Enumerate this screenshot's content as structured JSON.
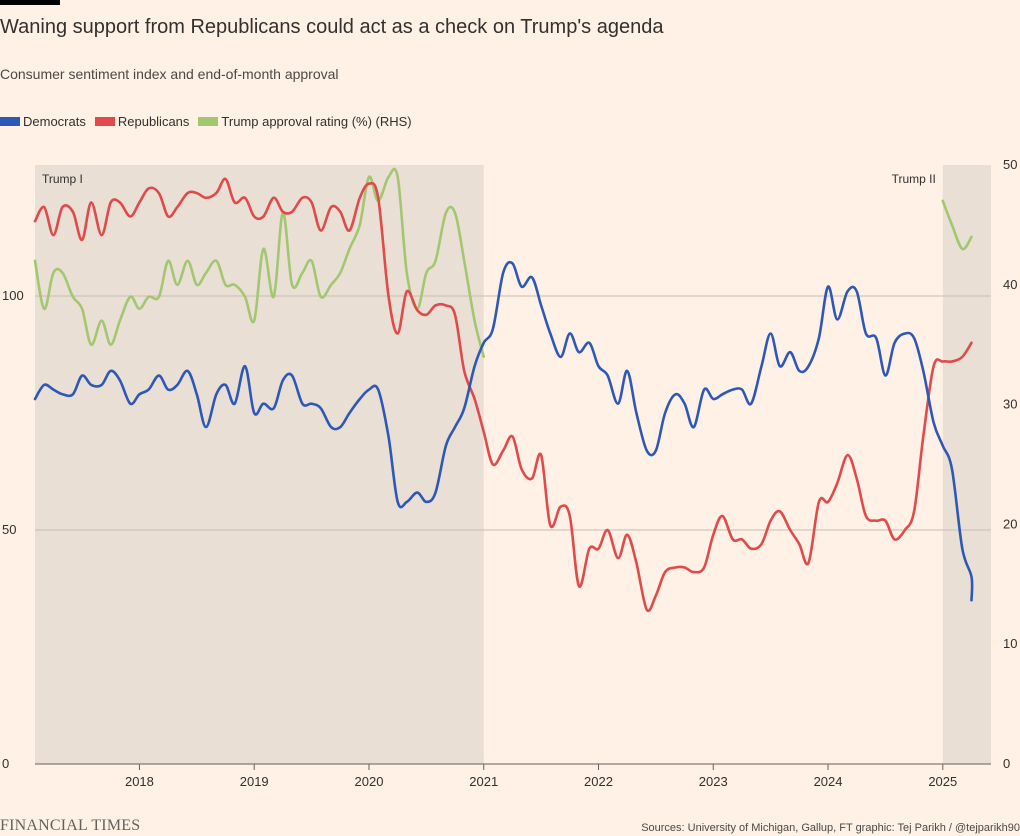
{
  "title": "Waning support from Republicans could act as a check on Trump's agenda",
  "subtitle": "Consumer sentiment index and end-of-month approval",
  "legend": [
    {
      "label": "Democrats",
      "color": "#2e58b8"
    },
    {
      "label": "Republicans",
      "color": "#e04a4a"
    },
    {
      "label": "Trump approval rating (%) (RHS)",
      "color": "#a3c770"
    }
  ],
  "footer": {
    "brand": "FINANCIAL TIMES",
    "source": "Sources: University of Michigan, Gallup, FT graphic: Tej Parikh / @tejparikh90"
  },
  "chart_data": {
    "type": "line",
    "xlabel": "",
    "ylabel": "",
    "x_ticks": [
      "2018",
      "2019",
      "2020",
      "2021",
      "2022",
      "2023",
      "2024",
      "2025"
    ],
    "x_range": [
      2017.09,
      2025.42
    ],
    "y_left": {
      "range": [
        0,
        128
      ],
      "ticks": [
        0,
        50,
        100
      ],
      "grid": true
    },
    "y_right": {
      "range": [
        0,
        50
      ],
      "ticks": [
        0,
        10,
        20,
        30,
        40,
        50
      ]
    },
    "shaded_periods": [
      {
        "label": "Trump I",
        "start": 2017.09,
        "end": 2021.0
      },
      {
        "label": "Trump II",
        "start": 2025.0,
        "end": 2025.42
      }
    ],
    "series": [
      {
        "name": "Democrats",
        "color": "#2e58b8",
        "axis": "left",
        "points": [
          [
            2017.09,
            78
          ],
          [
            2017.17,
            81
          ],
          [
            2017.25,
            80
          ],
          [
            2017.33,
            79
          ],
          [
            2017.42,
            79
          ],
          [
            2017.5,
            83
          ],
          [
            2017.58,
            81
          ],
          [
            2017.67,
            81
          ],
          [
            2017.75,
            84
          ],
          [
            2017.83,
            82
          ],
          [
            2017.92,
            77
          ],
          [
            2018.0,
            79
          ],
          [
            2018.08,
            80
          ],
          [
            2018.17,
            83
          ],
          [
            2018.25,
            80
          ],
          [
            2018.33,
            81
          ],
          [
            2018.42,
            84
          ],
          [
            2018.5,
            79
          ],
          [
            2018.58,
            72
          ],
          [
            2018.67,
            79
          ],
          [
            2018.75,
            81
          ],
          [
            2018.83,
            77
          ],
          [
            2018.92,
            85
          ],
          [
            2019.0,
            75
          ],
          [
            2019.08,
            77
          ],
          [
            2019.17,
            76
          ],
          [
            2019.25,
            82
          ],
          [
            2019.33,
            83
          ],
          [
            2019.42,
            77
          ],
          [
            2019.5,
            77
          ],
          [
            2019.58,
            76
          ],
          [
            2019.67,
            72
          ],
          [
            2019.75,
            72
          ],
          [
            2019.83,
            75
          ],
          [
            2019.92,
            78
          ],
          [
            2020.0,
            80
          ],
          [
            2020.08,
            80
          ],
          [
            2020.17,
            70
          ],
          [
            2020.25,
            56
          ],
          [
            2020.33,
            56
          ],
          [
            2020.42,
            58
          ],
          [
            2020.5,
            56
          ],
          [
            2020.58,
            58
          ],
          [
            2020.67,
            68
          ],
          [
            2020.75,
            72
          ],
          [
            2020.83,
            76
          ],
          [
            2020.92,
            85
          ],
          [
            2021.0,
            90
          ],
          [
            2021.08,
            93
          ],
          [
            2021.17,
            105
          ],
          [
            2021.25,
            107
          ],
          [
            2021.33,
            102
          ],
          [
            2021.42,
            104
          ],
          [
            2021.5,
            98
          ],
          [
            2021.58,
            92
          ],
          [
            2021.67,
            87
          ],
          [
            2021.75,
            92
          ],
          [
            2021.83,
            88
          ],
          [
            2021.92,
            90
          ],
          [
            2022.0,
            85
          ],
          [
            2022.08,
            83
          ],
          [
            2022.17,
            77
          ],
          [
            2022.25,
            84
          ],
          [
            2022.33,
            75
          ],
          [
            2022.42,
            67
          ],
          [
            2022.5,
            67
          ],
          [
            2022.58,
            75
          ],
          [
            2022.67,
            79
          ],
          [
            2022.75,
            77
          ],
          [
            2022.83,
            72
          ],
          [
            2022.92,
            80
          ],
          [
            2023.0,
            78
          ],
          [
            2023.08,
            79
          ],
          [
            2023.17,
            80
          ],
          [
            2023.25,
            80
          ],
          [
            2023.33,
            77
          ],
          [
            2023.42,
            85
          ],
          [
            2023.5,
            92
          ],
          [
            2023.58,
            85
          ],
          [
            2023.67,
            88
          ],
          [
            2023.75,
            84
          ],
          [
            2023.83,
            85
          ],
          [
            2023.92,
            91
          ],
          [
            2024.0,
            102
          ],
          [
            2024.08,
            95
          ],
          [
            2024.17,
            101
          ],
          [
            2024.25,
            101
          ],
          [
            2024.33,
            92
          ],
          [
            2024.42,
            91
          ],
          [
            2024.5,
            83
          ],
          [
            2024.58,
            90
          ],
          [
            2024.67,
            92
          ],
          [
            2024.75,
            91
          ],
          [
            2024.83,
            84
          ],
          [
            2024.92,
            73
          ],
          [
            2025.0,
            68
          ],
          [
            2025.08,
            63
          ],
          [
            2025.17,
            46
          ],
          [
            2025.25,
            40
          ],
          [
            2025.25,
            35
          ]
        ]
      },
      {
        "name": "Republicans",
        "color": "#e04a4a",
        "axis": "left",
        "points": [
          [
            2017.09,
            116
          ],
          [
            2017.17,
            119
          ],
          [
            2017.25,
            113
          ],
          [
            2017.33,
            119
          ],
          [
            2017.42,
            118
          ],
          [
            2017.5,
            112
          ],
          [
            2017.58,
            120
          ],
          [
            2017.67,
            113
          ],
          [
            2017.75,
            120
          ],
          [
            2017.83,
            120
          ],
          [
            2017.92,
            117
          ],
          [
            2018.0,
            120
          ],
          [
            2018.08,
            123
          ],
          [
            2018.17,
            122
          ],
          [
            2018.25,
            117
          ],
          [
            2018.33,
            119
          ],
          [
            2018.42,
            122
          ],
          [
            2018.5,
            122
          ],
          [
            2018.58,
            121
          ],
          [
            2018.67,
            122
          ],
          [
            2018.75,
            125
          ],
          [
            2018.83,
            120
          ],
          [
            2018.92,
            121
          ],
          [
            2019.0,
            117
          ],
          [
            2019.08,
            117
          ],
          [
            2019.17,
            121
          ],
          [
            2019.25,
            118
          ],
          [
            2019.33,
            118
          ],
          [
            2019.42,
            121
          ],
          [
            2019.5,
            120
          ],
          [
            2019.58,
            114
          ],
          [
            2019.67,
            119
          ],
          [
            2019.75,
            118
          ],
          [
            2019.83,
            114
          ],
          [
            2019.92,
            121
          ],
          [
            2020.0,
            124
          ],
          [
            2020.08,
            121
          ],
          [
            2020.17,
            100
          ],
          [
            2020.25,
            92
          ],
          [
            2020.33,
            101
          ],
          [
            2020.42,
            97
          ],
          [
            2020.5,
            96
          ],
          [
            2020.58,
            98
          ],
          [
            2020.67,
            98
          ],
          [
            2020.75,
            96
          ],
          [
            2020.83,
            84
          ],
          [
            2020.92,
            78
          ],
          [
            2021.0,
            71
          ],
          [
            2021.08,
            64
          ],
          [
            2021.17,
            67
          ],
          [
            2021.25,
            70
          ],
          [
            2021.33,
            63
          ],
          [
            2021.42,
            61
          ],
          [
            2021.5,
            66
          ],
          [
            2021.58,
            51
          ],
          [
            2021.67,
            55
          ],
          [
            2021.75,
            53
          ],
          [
            2021.83,
            38
          ],
          [
            2021.92,
            46
          ],
          [
            2022.0,
            46
          ],
          [
            2022.08,
            50
          ],
          [
            2022.17,
            44
          ],
          [
            2022.25,
            49
          ],
          [
            2022.33,
            43
          ],
          [
            2022.42,
            33
          ],
          [
            2022.5,
            36
          ],
          [
            2022.58,
            41
          ],
          [
            2022.67,
            42
          ],
          [
            2022.75,
            42
          ],
          [
            2022.83,
            41
          ],
          [
            2022.92,
            42
          ],
          [
            2023.0,
            49
          ],
          [
            2023.08,
            53
          ],
          [
            2023.17,
            48
          ],
          [
            2023.25,
            48
          ],
          [
            2023.33,
            46
          ],
          [
            2023.42,
            47
          ],
          [
            2023.5,
            52
          ],
          [
            2023.58,
            54
          ],
          [
            2023.67,
            50
          ],
          [
            2023.75,
            47
          ],
          [
            2023.83,
            43
          ],
          [
            2023.92,
            56
          ],
          [
            2024.0,
            56
          ],
          [
            2024.08,
            60
          ],
          [
            2024.17,
            66
          ],
          [
            2024.25,
            61
          ],
          [
            2024.33,
            53
          ],
          [
            2024.42,
            52
          ],
          [
            2024.5,
            52
          ],
          [
            2024.58,
            48
          ],
          [
            2024.67,
            50
          ],
          [
            2024.75,
            54
          ],
          [
            2024.83,
            70
          ],
          [
            2024.92,
            85
          ],
          [
            2025.0,
            86
          ],
          [
            2025.08,
            86
          ],
          [
            2025.17,
            87
          ],
          [
            2025.25,
            90
          ]
        ]
      },
      {
        "name": "Trump approval rating (%) (RHS)",
        "color": "#a3c770",
        "axis": "right",
        "segments": [
          [
            [
              2017.09,
              42
            ],
            [
              2017.17,
              38
            ],
            [
              2017.25,
              41
            ],
            [
              2017.33,
              41
            ],
            [
              2017.42,
              39
            ],
            [
              2017.5,
              38
            ],
            [
              2017.58,
              35
            ],
            [
              2017.67,
              37
            ],
            [
              2017.75,
              35
            ],
            [
              2017.83,
              37
            ],
            [
              2017.92,
              39
            ],
            [
              2018.0,
              38
            ],
            [
              2018.08,
              39
            ],
            [
              2018.17,
              39
            ],
            [
              2018.25,
              42
            ],
            [
              2018.33,
              40
            ],
            [
              2018.42,
              42
            ],
            [
              2018.5,
              40
            ],
            [
              2018.58,
              41
            ],
            [
              2018.67,
              42
            ],
            [
              2018.75,
              40
            ],
            [
              2018.83,
              40
            ],
            [
              2018.92,
              39
            ],
            [
              2019.0,
              37
            ],
            [
              2019.08,
              43
            ],
            [
              2019.17,
              39
            ],
            [
              2019.25,
              46
            ],
            [
              2019.33,
              40
            ],
            [
              2019.42,
              41
            ],
            [
              2019.5,
              42
            ],
            [
              2019.58,
              39
            ],
            [
              2019.67,
              40
            ],
            [
              2019.75,
              41
            ],
            [
              2019.83,
              43
            ],
            [
              2019.92,
              45
            ],
            [
              2020.0,
              49
            ],
            [
              2020.08,
              47
            ],
            [
              2020.17,
              49
            ],
            [
              2020.25,
              49
            ],
            [
              2020.33,
              41
            ],
            [
              2020.42,
              38
            ],
            [
              2020.5,
              41
            ],
            [
              2020.58,
              42
            ],
            [
              2020.67,
              46
            ],
            [
              2020.75,
              46
            ],
            [
              2020.83,
              42
            ],
            [
              2020.92,
              37
            ],
            [
              2021.0,
              34
            ]
          ],
          [
            [
              2025.0,
              47
            ],
            [
              2025.08,
              45
            ],
            [
              2025.17,
              43
            ],
            [
              2025.25,
              44
            ]
          ]
        ]
      }
    ]
  }
}
